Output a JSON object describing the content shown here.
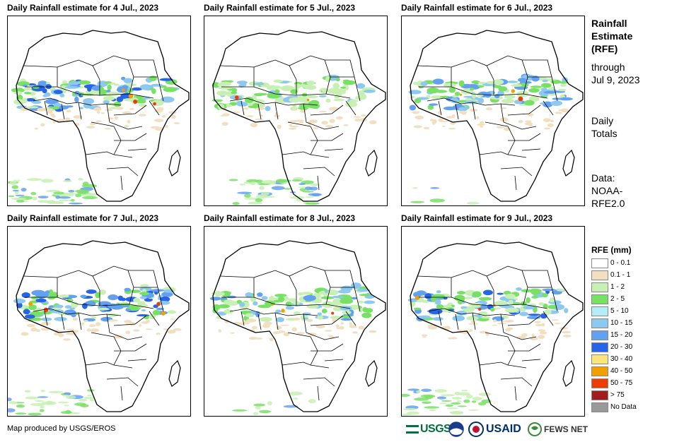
{
  "panels": [
    {
      "title": "Daily Rainfall estimate for 4 Jul., 2023",
      "intensity": 0.9,
      "south_band": 1.0
    },
    {
      "title": "Daily Rainfall estimate for 5 Jul., 2023",
      "intensity": 0.55,
      "south_band": 0.9
    },
    {
      "title": "Daily Rainfall estimate for 6 Jul., 2023",
      "intensity": 0.75,
      "south_band": 0.1
    },
    {
      "title": "Daily Rainfall estimate for 7 Jul., 2023",
      "intensity": 0.95,
      "south_band": 0.7
    },
    {
      "title": "Daily Rainfall estimate for 8 Jul., 2023",
      "intensity": 0.7,
      "south_band": 0.2
    },
    {
      "title": "Daily Rainfall estimate for 9 Jul., 2023",
      "intensity": 0.85,
      "south_band": 0.8
    }
  ],
  "sidebar": {
    "title_lines": [
      "Rainfall",
      "Estimate",
      "(RFE)"
    ],
    "through_lines": [
      "through",
      "Jul 9, 2023"
    ],
    "totals_lines": [
      "Daily",
      "Totals"
    ],
    "data_lines": [
      "Data:",
      "NOAA-",
      "RFE2.0"
    ]
  },
  "legend": {
    "title": "RFE (mm)",
    "items": [
      {
        "label": "0 - 0.1",
        "color": "#ffffff"
      },
      {
        "label": "0.1 - 1",
        "color": "#f0dfc0"
      },
      {
        "label": "1 - 2",
        "color": "#c8f0b4"
      },
      {
        "label": "2 - 5",
        "color": "#78e064"
      },
      {
        "label": "5 - 10",
        "color": "#b4ecf8"
      },
      {
        "label": "10 - 15",
        "color": "#8cc8f0"
      },
      {
        "label": "15 - 20",
        "color": "#64a0f0"
      },
      {
        "label": "20 - 30",
        "color": "#2864e6"
      },
      {
        "label": "30 - 40",
        "color": "#fae678"
      },
      {
        "label": "40 - 50",
        "color": "#f0a000"
      },
      {
        "label": "50 - 75",
        "color": "#f03c00"
      },
      {
        "label": "> 75",
        "color": "#a01e1e"
      },
      {
        "label": "No Data",
        "color": "#999999"
      }
    ]
  },
  "footer": {
    "credit": "Map produced by USGS/EROS",
    "logos": [
      "USGS",
      "NOAA",
      "USAID",
      "FEWS NET"
    ]
  }
}
